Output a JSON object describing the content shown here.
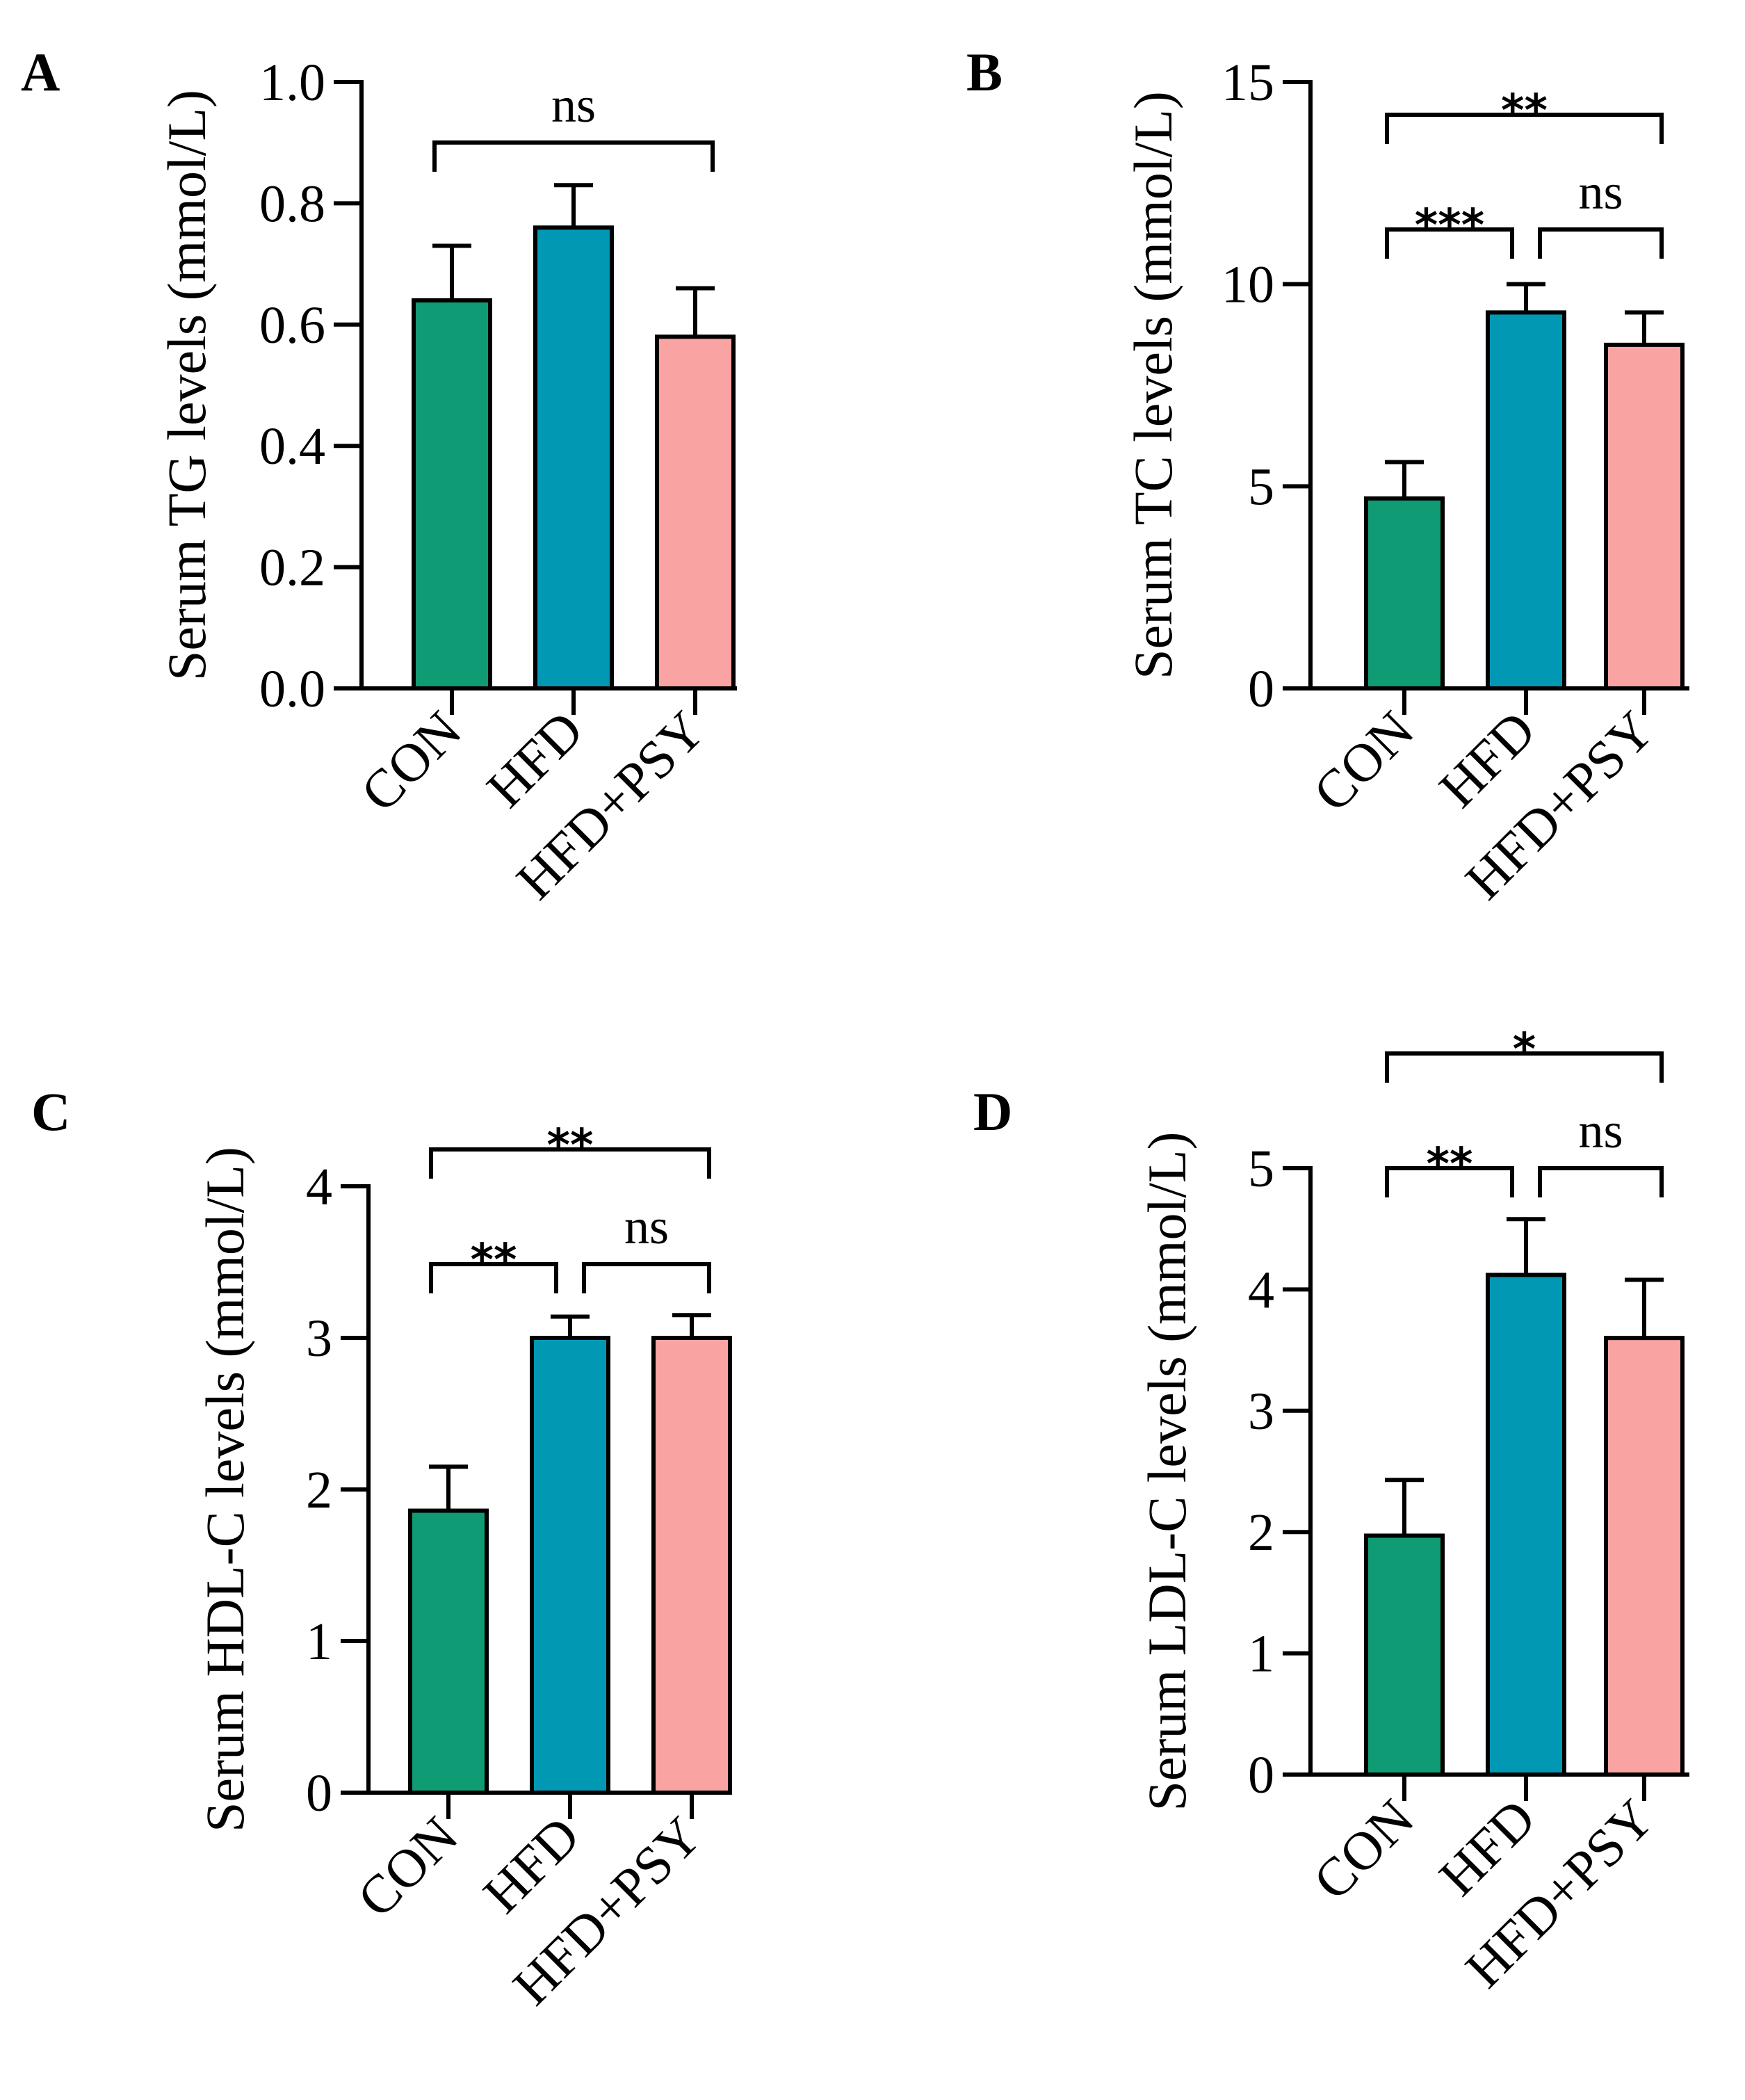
{
  "chart_data": [
    {
      "panel": "A",
      "type": "bar",
      "ylabel": "Serum TG levels (mmol/L)",
      "categories": [
        "CON",
        "HFD",
        "HFD+PSY"
      ],
      "values": [
        0.64,
        0.76,
        0.58
      ],
      "errors": [
        0.09,
        0.07,
        0.08
      ],
      "ylim": [
        0,
        1.0
      ],
      "yticks": [
        "0.0",
        "0.2",
        "0.4",
        "0.6",
        "0.8",
        "1.0"
      ],
      "ytick_values": [
        0,
        0.2,
        0.4,
        0.6,
        0.8,
        1.0
      ],
      "colors": [
        "#0f9b74",
        "#0198b4",
        "#f9a3a3"
      ],
      "significance": [
        {
          "from": 0,
          "to": 2,
          "label": "ns"
        }
      ]
    },
    {
      "panel": "B",
      "type": "bar",
      "ylabel": "Serum TC levels (mmol/L)",
      "categories": [
        "CON",
        "HFD",
        "HFD+PSY"
      ],
      "values": [
        4.7,
        9.3,
        8.5
      ],
      "errors": [
        0.9,
        0.7,
        0.8
      ],
      "ylim": [
        0,
        15
      ],
      "yticks": [
        "0",
        "5",
        "10",
        "15"
      ],
      "ytick_values": [
        0,
        5,
        10,
        15
      ],
      "colors": [
        "#0f9b74",
        "#0198b4",
        "#f9a3a3"
      ],
      "significance": [
        {
          "from": 0,
          "to": 1,
          "label": "***"
        },
        {
          "from": 1,
          "to": 2,
          "label": "ns"
        },
        {
          "from": 0,
          "to": 2,
          "label": "**"
        }
      ]
    },
    {
      "panel": "C",
      "type": "bar",
      "ylabel": "Serum HDL-C levels (mmol/L)",
      "categories": [
        "CON",
        "HFD",
        "HFD+PSY"
      ],
      "values": [
        1.86,
        3.0,
        3.0
      ],
      "errors": [
        0.29,
        0.14,
        0.15
      ],
      "ylim": [
        0,
        4
      ],
      "yticks": [
        "0",
        "1",
        "2",
        "3",
        "4"
      ],
      "ytick_values": [
        0,
        1,
        2,
        3,
        4
      ],
      "colors": [
        "#0f9b74",
        "#0198b4",
        "#f9a3a3"
      ],
      "significance": [
        {
          "from": 0,
          "to": 1,
          "label": "**"
        },
        {
          "from": 1,
          "to": 2,
          "label": "ns"
        },
        {
          "from": 0,
          "to": 2,
          "label": "**"
        }
      ]
    },
    {
      "panel": "D",
      "type": "bar",
      "ylabel": "Serum LDL-C levels (mmol/L)",
      "categories": [
        "CON",
        "HFD",
        "HFD+PSY"
      ],
      "values": [
        1.97,
        4.12,
        3.6
      ],
      "errors": [
        0.46,
        0.46,
        0.48
      ],
      "ylim": [
        0,
        5
      ],
      "yticks": [
        "0",
        "1",
        "2",
        "3",
        "4",
        "5"
      ],
      "ytick_values": [
        0,
        1,
        2,
        3,
        4,
        5
      ],
      "colors": [
        "#0f9b74",
        "#0198b4",
        "#f9a3a3"
      ],
      "significance": [
        {
          "from": 0,
          "to": 1,
          "label": "**"
        },
        {
          "from": 1,
          "to": 2,
          "label": "ns"
        },
        {
          "from": 0,
          "to": 2,
          "label": "*"
        }
      ]
    }
  ]
}
